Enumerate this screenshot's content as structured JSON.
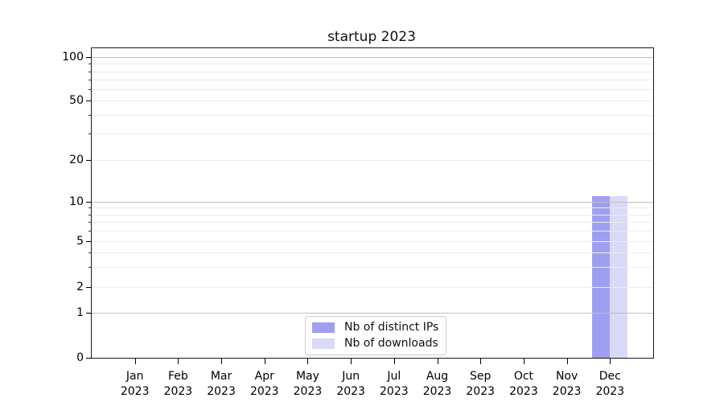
{
  "chart_data": {
    "type": "bar",
    "title": "startup 2023",
    "categories": [
      "Jan 2023",
      "Feb 2023",
      "Mar 2023",
      "Apr 2023",
      "May 2023",
      "Jun 2023",
      "Jul 2023",
      "Aug 2023",
      "Sep 2023",
      "Oct 2023",
      "Nov 2023",
      "Dec 2023"
    ],
    "series": [
      {
        "name": "Nb of distinct IPs",
        "color": "#9f9ff1",
        "values": [
          0,
          0,
          0,
          0,
          0,
          0,
          0,
          0,
          0,
          0,
          0,
          11
        ]
      },
      {
        "name": "Nb of downloads",
        "color": "#d9d9f8",
        "values": [
          0,
          0,
          0,
          0,
          0,
          0,
          0,
          0,
          0,
          0,
          0,
          11
        ]
      }
    ],
    "xlabel": "",
    "ylabel": "",
    "yticks": [
      0,
      1,
      2,
      5,
      10,
      20,
      50,
      100
    ],
    "yaxis_scale": "symlog",
    "ylim": [
      0,
      110
    ],
    "grid": {
      "on": true,
      "major": [
        1,
        10,
        100
      ],
      "minor": [
        2,
        3,
        4,
        5,
        6,
        7,
        8,
        9,
        20,
        30,
        40,
        50,
        60,
        70,
        80,
        90
      ]
    },
    "legend": {
      "position": "lower center",
      "entries": [
        "Nb of distinct IPs",
        "Nb of downloads"
      ]
    }
  },
  "colors": {
    "background": "#ffffff",
    "axis": "#000000",
    "major_grid": "#bfbfbf",
    "minor_grid": "#ececec"
  }
}
